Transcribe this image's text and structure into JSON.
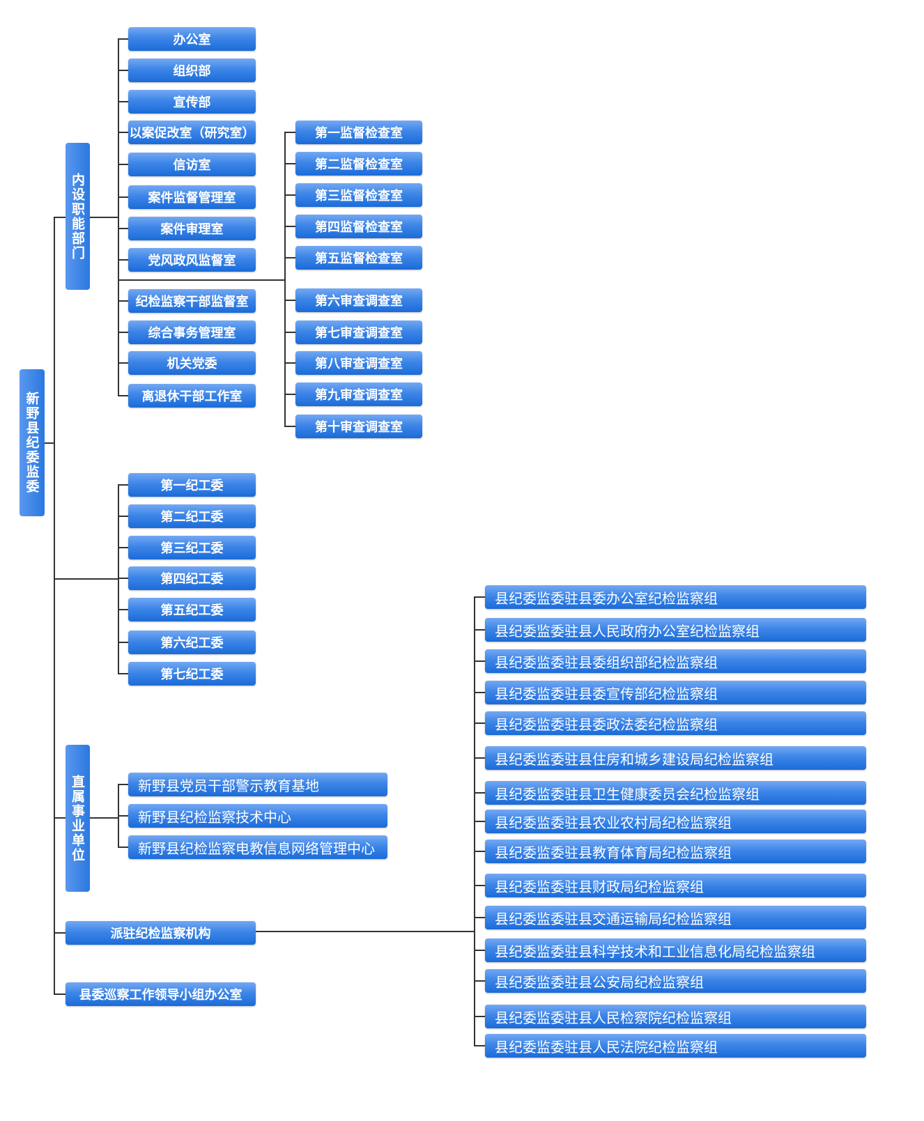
{
  "root": "新野县纪委监委",
  "internal": {
    "label": "内设职能部门",
    "items": [
      "办公室",
      "组织部",
      "宣传部",
      "以案促改室（研究室）",
      "信访室",
      "案件监督管理室",
      "案件审理室",
      "党风政风监督室",
      "纪检监察干部监督室",
      "综合事务管理室",
      "机关党委",
      "离退休干部工作室"
    ],
    "offices": [
      "第一监督检查室",
      "第二监督检查室",
      "第三监督检查室",
      "第四监督检查室",
      "第五监督检查室",
      "第六审查调查室",
      "第七审查调查室",
      "第八审查调查室",
      "第九审查调查室",
      "第十审查调查室"
    ]
  },
  "discipline_committees": [
    "第一纪工委",
    "第二纪工委",
    "第三纪工委",
    "第四纪工委",
    "第五纪工委",
    "第六纪工委",
    "第七纪工委"
  ],
  "affiliated": {
    "label": "直属事业单位",
    "items": [
      "新野县党员干部警示教育基地",
      "新野县纪检监察技术中心",
      "新野县纪检监察电教信息网络管理中心"
    ]
  },
  "stationed": {
    "label": "派驻纪检监察机构",
    "items": [
      "县纪委监委驻县委办公室纪检监察组",
      "县纪委监委驻县人民政府办公室纪检监察组",
      "县纪委监委驻县委组织部纪检监察组",
      "县纪委监委驻县委宣传部纪检监察组",
      "县纪委监委驻县委政法委纪检监察组",
      "县纪委监委驻县住房和城乡建设局纪检监察组",
      "县纪委监委驻县卫生健康委员会纪检监察组",
      "县纪委监委驻县农业农村局纪检监察组",
      "县纪委监委驻县教育体育局纪检监察组",
      "县纪委监委驻县财政局纪检监察组",
      "县纪委监委驻县交通运输局纪检监察组",
      "县纪委监委驻县科学技术和工业信息化局纪检监察组",
      "县纪委监委驻县公安局纪检监察组",
      "县纪委监委驻县人民检察院纪检监察组",
      "县纪委监委驻县人民法院纪检监察组"
    ]
  },
  "inspection_office": "县委巡察工作领导小组办公室",
  "colors": {
    "box_top": "#74a8f2",
    "box_bottom": "#1b6bd8",
    "line": "#333333"
  }
}
